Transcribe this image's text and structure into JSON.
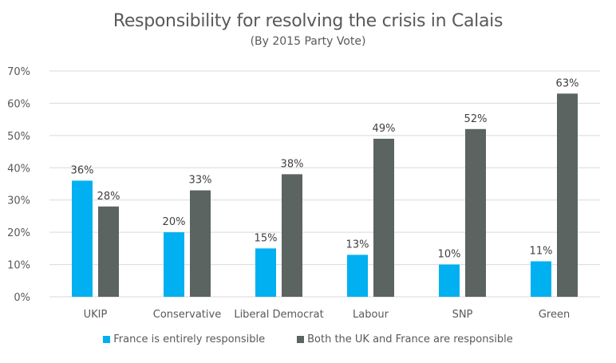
{
  "chart_data": {
    "type": "bar",
    "title": "Responsibility for resolving the crisis in Calais",
    "subtitle": "(By 2015 Party Vote)",
    "xlabel": "",
    "ylabel": "",
    "categories": [
      "UKIP",
      "Conservative",
      "Liberal Democrat",
      "Labour",
      "SNP",
      "Green"
    ],
    "series": [
      {
        "name": "France is entirely responsible",
        "color": "#00B0F0",
        "values": [
          36,
          20,
          15,
          13,
          10,
          11
        ],
        "labels": [
          "36%",
          "20%",
          "15%",
          "13%",
          "10%",
          "11%"
        ]
      },
      {
        "name": "Both the UK and France are responsible",
        "color": "#5B6460",
        "values": [
          28,
          33,
          38,
          49,
          52,
          63
        ],
        "labels": [
          "28%",
          "33%",
          "38%",
          "49%",
          "52%",
          "63%"
        ]
      }
    ],
    "ylim": [
      0,
      70
    ],
    "yticks": [
      0,
      10,
      20,
      30,
      40,
      50,
      60,
      70
    ],
    "ytick_labels": [
      "0%",
      "10%",
      "20%",
      "30%",
      "40%",
      "50%",
      "60%",
      "70%"
    ],
    "grid": true,
    "legend_position": "bottom"
  }
}
